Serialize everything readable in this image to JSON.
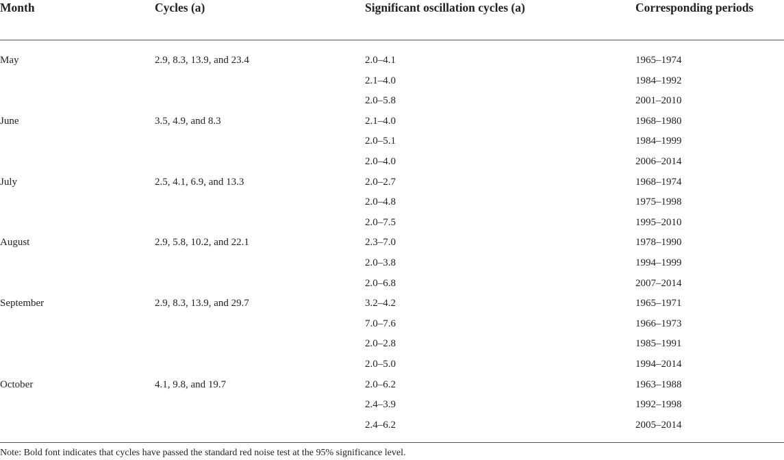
{
  "table": {
    "header": [
      "Month",
      "Cycles (a)",
      "Significant oscillation cycles (a)",
      "Corresponding periods"
    ],
    "groups": [
      {
        "month": "May",
        "cycles": "2.9, 8.3, 13.9, and 23.4",
        "rows": [
          [
            "2.0–4.1",
            "1965–1974"
          ],
          [
            "2.1–4.0",
            "1984–1992"
          ],
          [
            "2.0–5.8",
            "2001–2010"
          ]
        ]
      },
      {
        "month": "June",
        "cycles": "3.5, 4.9, and 8.3",
        "rows": [
          [
            "2.1–4.0",
            "1968–1980"
          ],
          [
            "2.0–5.1",
            "1984–1999"
          ],
          [
            "2.0–4.0",
            "2006–2014"
          ]
        ]
      },
      {
        "month": "July",
        "cycles": "2.5, 4.1, 6.9, and 13.3",
        "rows": [
          [
            "2.0–2.7",
            "1968–1974"
          ],
          [
            "2.0–4.8",
            "1975–1998"
          ],
          [
            "2.0–7.5",
            "1995–2010"
          ]
        ]
      },
      {
        "month": "August",
        "cycles": "2.9, 5.8, 10.2, and 22.1",
        "rows": [
          [
            "2.3–7.0",
            "1978–1990"
          ],
          [
            "2.0–3.8",
            "1994–1999"
          ],
          [
            "2.0–6.8",
            "2007–2014"
          ]
        ]
      },
      {
        "month": "September",
        "cycles": "2.9, 8.3, 13.9, and 29.7",
        "rows": [
          [
            "3.2–4.2",
            "1965–1971"
          ],
          [
            "7.0–7.6",
            "1966–1973"
          ],
          [
            "2.0–2.8",
            "1985–1991"
          ],
          [
            "2.0–5.0",
            "1994–2014"
          ]
        ]
      },
      {
        "month": "October",
        "cycles": "4.1, 9.8, and 19.7",
        "rows": [
          [
            "2.0–6.2",
            "1963–1988"
          ],
          [
            "2.4–3.9",
            "1992–1998"
          ],
          [
            "2.4–6.2",
            "2005–2014"
          ]
        ]
      }
    ],
    "note": "Note: Bold font indicates that cycles have passed the standard red noise test at the 95% significance level."
  }
}
